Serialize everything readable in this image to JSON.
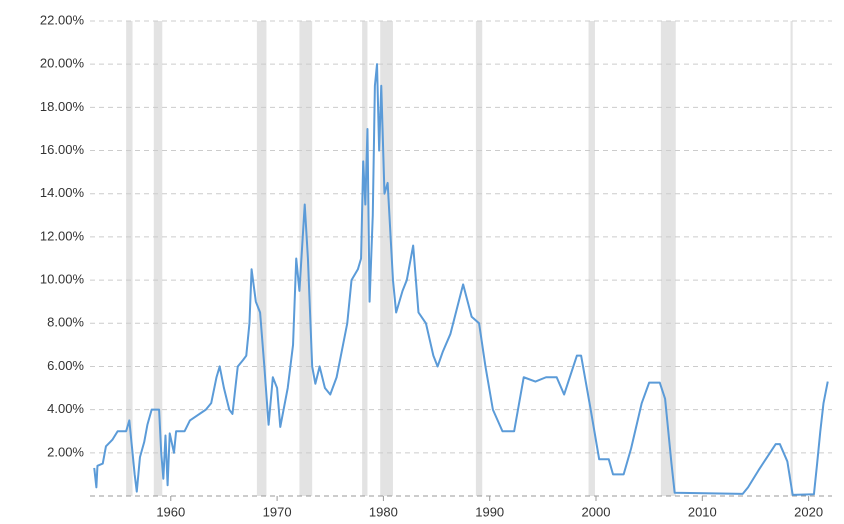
{
  "chart_data": {
    "type": "line",
    "color": "#5b9bd8",
    "shade_color": "#e3e3e3",
    "grid": true,
    "xlim": [
      1952.4,
      2022.2
    ],
    "xticks": [
      1960,
      1970,
      1980,
      1990,
      2000,
      2010,
      2020
    ],
    "ylim": [
      0,
      22
    ],
    "yticks": [
      {
        "value": 2,
        "label": "2.00%"
      },
      {
        "value": 4,
        "label": "4.00%"
      },
      {
        "value": 6,
        "label": "6.00%"
      },
      {
        "value": 8,
        "label": "8.00%"
      },
      {
        "value": 10,
        "label": "10.00%"
      },
      {
        "value": 12,
        "label": "12.00%"
      },
      {
        "value": 14,
        "label": "14.00%"
      },
      {
        "value": 16,
        "label": "16.00%"
      },
      {
        "value": 18,
        "label": "18.00%"
      },
      {
        "value": 20,
        "label": "20.00%"
      },
      {
        "value": 22,
        "label": "22.00%"
      }
    ],
    "shaded_ranges": [
      [
        1955.8,
        1956.4
      ],
      [
        1958.4,
        1959.2
      ],
      [
        1968.1,
        1969.0
      ],
      [
        1972.1,
        1973.3
      ],
      [
        1978.0,
        1978.5
      ],
      [
        1979.7,
        1980.9
      ],
      [
        1988.7,
        1989.3
      ],
      [
        1999.3,
        1999.9
      ],
      [
        2006.1,
        2007.5
      ],
      [
        2018.3,
        2018.5
      ]
    ],
    "x": [
      1952.8,
      1953.0,
      1953.1,
      1953.6,
      1953.9,
      1954.5,
      1955.0,
      1955.8,
      1956.1,
      1956.3,
      1956.6,
      1956.8,
      1957.1,
      1957.5,
      1957.8,
      1958.2,
      1958.9,
      1959.1,
      1959.3,
      1959.5,
      1959.7,
      1959.9,
      1960.3,
      1960.5,
      1961.3,
      1961.8,
      1963.3,
      1963.8,
      1964.3,
      1964.6,
      1965.0,
      1965.5,
      1965.8,
      1966.3,
      1966.8,
      1967.1,
      1967.4,
      1967.6,
      1968.0,
      1968.4,
      1968.8,
      1969.2,
      1969.6,
      1970.0,
      1970.3,
      1971.0,
      1971.5,
      1971.8,
      1972.1,
      1972.6,
      1972.9,
      1973.3,
      1973.6,
      1974.0,
      1974.5,
      1975.0,
      1975.6,
      1976.0,
      1976.6,
      1977.0,
      1977.6,
      1977.9,
      1978.1,
      1978.3,
      1978.5,
      1978.7,
      1979.0,
      1979.2,
      1979.4,
      1979.6,
      1979.8,
      1980.1,
      1980.4,
      1980.9,
      1981.2,
      1981.8,
      1982.2,
      1982.8,
      1983.3,
      1984.0,
      1984.7,
      1985.1,
      1985.6,
      1986.3,
      1987.5,
      1988.3,
      1989.0,
      1989.6,
      1990.3,
      1991.2,
      1992.3,
      1993.2,
      1994.3,
      1995.3,
      1996.3,
      1997.0,
      1998.2,
      1998.6,
      1999.5,
      2000.3,
      2001.2,
      2001.6,
      2002.6,
      2003.3,
      2004.3,
      2005.0,
      2006.0,
      2006.5,
      2007.1,
      2007.4,
      2013.8,
      2014.3,
      2015.3,
      2016.9,
      2017.3,
      2018.0,
      2018.5,
      2020.5,
      2020.8,
      2021.1,
      2021.4,
      2021.8
    ],
    "values": [
      1.3,
      0.4,
      1.4,
      1.5,
      2.3,
      2.6,
      3.0,
      3.0,
      3.5,
      2.5,
      1.0,
      0.2,
      1.8,
      2.5,
      3.3,
      4.0,
      4.0,
      2.0,
      0.8,
      2.8,
      0.5,
      2.9,
      2.0,
      3.0,
      3.0,
      3.5,
      4.0,
      4.3,
      5.5,
      6.0,
      5.0,
      4.0,
      3.8,
      6.0,
      6.3,
      6.5,
      8.0,
      10.5,
      9.0,
      8.5,
      6.0,
      3.3,
      5.5,
      5.0,
      3.2,
      5.0,
      7.0,
      11.0,
      9.5,
      13.5,
      11.0,
      6.0,
      5.2,
      6.0,
      5.0,
      4.7,
      5.5,
      6.5,
      8.0,
      10.0,
      10.5,
      11.0,
      15.5,
      13.5,
      17.0,
      9.0,
      13.0,
      19.0,
      20.0,
      16.0,
      19.0,
      14.0,
      14.5,
      10.0,
      8.5,
      9.5,
      10.0,
      11.6,
      8.5,
      8.0,
      6.5,
      6.0,
      6.7,
      7.5,
      9.8,
      8.3,
      8.0,
      6.0,
      4.0,
      3.0,
      3.0,
      5.5,
      5.3,
      5.5,
      5.5,
      4.7,
      6.5,
      6.5,
      4.0,
      1.7,
      1.7,
      1.0,
      1.0,
      2.2,
      4.3,
      5.25,
      5.25,
      4.5,
      1.5,
      0.15,
      0.1,
      0.4,
      1.2,
      2.4,
      2.4,
      1.6,
      0.05,
      0.08,
      1.5,
      3.0,
      4.3,
      5.3
    ]
  }
}
